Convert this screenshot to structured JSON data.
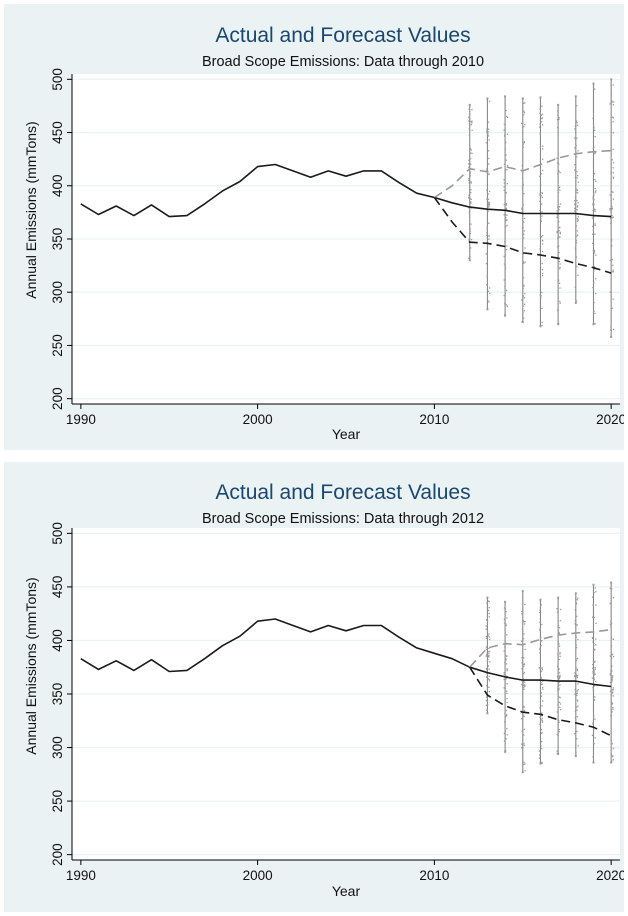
{
  "chart_data": [
    {
      "type": "line",
      "title": "Actual and Forecast Values",
      "subtitle": "Broad Scope Emissions: Data through 2010",
      "xlabel": "Year",
      "ylabel": "Annual Emissions (mmTons)",
      "xlim": [
        1989.5,
        2020.5
      ],
      "ylim": [
        195,
        505
      ],
      "x_ticks": [
        1990,
        2000,
        2010,
        2020
      ],
      "y_ticks": [
        200,
        250,
        300,
        350,
        400,
        450,
        500
      ],
      "grid": true,
      "legend": "none",
      "series": [
        {
          "line_style": "solid",
          "color": "#1a1a1a",
          "points": [
            [
              1990,
              383
            ],
            [
              1991,
              373
            ],
            [
              1992,
              381
            ],
            [
              1993,
              372
            ],
            [
              1994,
              382
            ],
            [
              1995,
              371
            ],
            [
              1996,
              372
            ],
            [
              1997,
              383
            ],
            [
              1998,
              395
            ],
            [
              1999,
              404
            ],
            [
              2000,
              418
            ],
            [
              2001,
              420
            ],
            [
              2002,
              414
            ],
            [
              2003,
              408
            ],
            [
              2004,
              414
            ],
            [
              2005,
              409
            ],
            [
              2006,
              414
            ],
            [
              2007,
              414
            ],
            [
              2008,
              403
            ],
            [
              2009,
              393
            ],
            [
              2010,
              389
            ],
            [
              2011,
              384
            ],
            [
              2012,
              380
            ],
            [
              2013,
              378
            ],
            [
              2014,
              377
            ],
            [
              2015,
              374
            ],
            [
              2016,
              374
            ],
            [
              2017,
              374
            ],
            [
              2018,
              374
            ],
            [
              2019,
              372
            ],
            [
              2020,
              371
            ]
          ]
        },
        {
          "line_style": "dashed",
          "color": "#999999",
          "points": [
            [
              2010,
              389
            ],
            [
              2011,
              400
            ],
            [
              2012,
              416
            ],
            [
              2013,
              413
            ],
            [
              2014,
              418
            ],
            [
              2015,
              414
            ],
            [
              2016,
              420
            ],
            [
              2017,
              426
            ],
            [
              2018,
              430
            ],
            [
              2019,
              432
            ],
            [
              2020,
              433
            ]
          ]
        },
        {
          "line_style": "dashed",
          "color": "#1a1a1a",
          "points": [
            [
              2010,
              389
            ],
            [
              2011,
              366
            ],
            [
              2012,
              347
            ],
            [
              2013,
              346
            ],
            [
              2014,
              343
            ],
            [
              2015,
              337
            ],
            [
              2016,
              335
            ],
            [
              2017,
              332
            ],
            [
              2018,
              327
            ],
            [
              2019,
              323
            ],
            [
              2020,
              318
            ]
          ]
        }
      ],
      "simulation_ranges": {
        "color": "#888888",
        "columns": [
          {
            "x": 2012,
            "low": 330,
            "high": 476
          },
          {
            "x": 2013,
            "low": 284,
            "high": 482
          },
          {
            "x": 2014,
            "low": 278,
            "high": 484
          },
          {
            "x": 2015,
            "low": 272,
            "high": 482
          },
          {
            "x": 2016,
            "low": 268,
            "high": 483
          },
          {
            "x": 2017,
            "low": 270,
            "high": 476
          },
          {
            "x": 2018,
            "low": 290,
            "high": 484
          },
          {
            "x": 2019,
            "low": 270,
            "high": 496
          },
          {
            "x": 2020,
            "low": 258,
            "high": 500
          }
        ]
      }
    },
    {
      "type": "line",
      "title": "Actual and Forecast Values",
      "subtitle": "Broad Scope Emissions: Data through 2012",
      "xlabel": "Year",
      "ylabel": "Annual Emissions (mmTons)",
      "xlim": [
        1989.5,
        2020.5
      ],
      "ylim": [
        195,
        505
      ],
      "x_ticks": [
        1990,
        2000,
        2010,
        2020
      ],
      "y_ticks": [
        200,
        250,
        300,
        350,
        400,
        450,
        500
      ],
      "grid": true,
      "legend": "none",
      "series": [
        {
          "line_style": "solid",
          "color": "#1a1a1a",
          "points": [
            [
              1990,
              383
            ],
            [
              1991,
              373
            ],
            [
              1992,
              381
            ],
            [
              1993,
              372
            ],
            [
              1994,
              382
            ],
            [
              1995,
              371
            ],
            [
              1996,
              372
            ],
            [
              1997,
              383
            ],
            [
              1998,
              395
            ],
            [
              1999,
              404
            ],
            [
              2000,
              418
            ],
            [
              2001,
              420
            ],
            [
              2002,
              414
            ],
            [
              2003,
              408
            ],
            [
              2004,
              414
            ],
            [
              2005,
              409
            ],
            [
              2006,
              414
            ],
            [
              2007,
              414
            ],
            [
              2008,
              403
            ],
            [
              2009,
              393
            ],
            [
              2010,
              388
            ],
            [
              2011,
              383
            ],
            [
              2012,
              375
            ],
            [
              2013,
              370
            ],
            [
              2014,
              366
            ],
            [
              2015,
              363
            ],
            [
              2016,
              363
            ],
            [
              2017,
              362
            ],
            [
              2018,
              362
            ],
            [
              2019,
              359
            ],
            [
              2020,
              357
            ]
          ]
        },
        {
          "line_style": "dashed",
          "color": "#999999",
          "points": [
            [
              2012,
              375
            ],
            [
              2013,
              393
            ],
            [
              2014,
              397
            ],
            [
              2015,
              396
            ],
            [
              2016,
              401
            ],
            [
              2017,
              405
            ],
            [
              2018,
              407
            ],
            [
              2019,
              408
            ],
            [
              2020,
              410
            ]
          ]
        },
        {
          "line_style": "dashed",
          "color": "#1a1a1a",
          "points": [
            [
              2012,
              375
            ],
            [
              2013,
              349
            ],
            [
              2014,
              339
            ],
            [
              2015,
              333
            ],
            [
              2016,
              331
            ],
            [
              2017,
              326
            ],
            [
              2018,
              323
            ],
            [
              2019,
              319
            ],
            [
              2020,
              311
            ]
          ]
        }
      ],
      "simulation_ranges": {
        "color": "#888888",
        "columns": [
          {
            "x": 2013,
            "low": 332,
            "high": 440
          },
          {
            "x": 2014,
            "low": 296,
            "high": 436
          },
          {
            "x": 2015,
            "low": 277,
            "high": 446
          },
          {
            "x": 2016,
            "low": 285,
            "high": 438
          },
          {
            "x": 2017,
            "low": 294,
            "high": 440
          },
          {
            "x": 2018,
            "low": 292,
            "high": 444
          },
          {
            "x": 2019,
            "low": 286,
            "high": 452
          },
          {
            "x": 2020,
            "low": 286,
            "high": 454
          }
        ]
      }
    }
  ]
}
